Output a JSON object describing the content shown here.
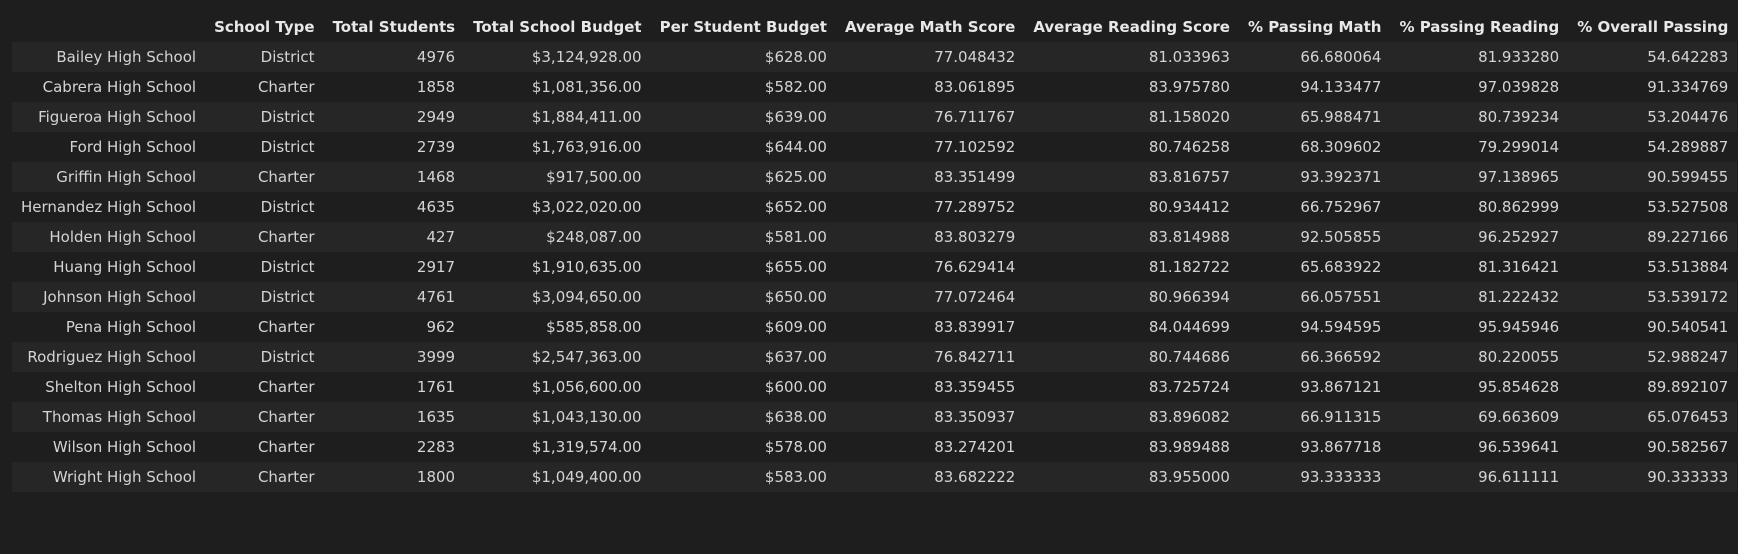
{
  "table": {
    "columns": [
      "",
      "School Type",
      "Total Students",
      "Total School Budget",
      "Per Student Budget",
      "Average Math Score",
      "Average Reading Score",
      "% Passing Math",
      "% Passing Reading",
      "% Overall Passing"
    ],
    "rows": [
      [
        "Bailey High School",
        "District",
        "4976",
        "$3,124,928.00",
        "$628.00",
        "77.048432",
        "81.033963",
        "66.680064",
        "81.933280",
        "54.642283"
      ],
      [
        "Cabrera High School",
        "Charter",
        "1858",
        "$1,081,356.00",
        "$582.00",
        "83.061895",
        "83.975780",
        "94.133477",
        "97.039828",
        "91.334769"
      ],
      [
        "Figueroa High School",
        "District",
        "2949",
        "$1,884,411.00",
        "$639.00",
        "76.711767",
        "81.158020",
        "65.988471",
        "80.739234",
        "53.204476"
      ],
      [
        "Ford High School",
        "District",
        "2739",
        "$1,763,916.00",
        "$644.00",
        "77.102592",
        "80.746258",
        "68.309602",
        "79.299014",
        "54.289887"
      ],
      [
        "Griffin High School",
        "Charter",
        "1468",
        "$917,500.00",
        "$625.00",
        "83.351499",
        "83.816757",
        "93.392371",
        "97.138965",
        "90.599455"
      ],
      [
        "Hernandez High School",
        "District",
        "4635",
        "$3,022,020.00",
        "$652.00",
        "77.289752",
        "80.934412",
        "66.752967",
        "80.862999",
        "53.527508"
      ],
      [
        "Holden High School",
        "Charter",
        "427",
        "$248,087.00",
        "$581.00",
        "83.803279",
        "83.814988",
        "92.505855",
        "96.252927",
        "89.227166"
      ],
      [
        "Huang High School",
        "District",
        "2917",
        "$1,910,635.00",
        "$655.00",
        "76.629414",
        "81.182722",
        "65.683922",
        "81.316421",
        "53.513884"
      ],
      [
        "Johnson High School",
        "District",
        "4761",
        "$3,094,650.00",
        "$650.00",
        "77.072464",
        "80.966394",
        "66.057551",
        "81.222432",
        "53.539172"
      ],
      [
        "Pena High School",
        "Charter",
        "962",
        "$585,858.00",
        "$609.00",
        "83.839917",
        "84.044699",
        "94.594595",
        "95.945946",
        "90.540541"
      ],
      [
        "Rodriguez High School",
        "District",
        "3999",
        "$2,547,363.00",
        "$637.00",
        "76.842711",
        "80.744686",
        "66.366592",
        "80.220055",
        "52.988247"
      ],
      [
        "Shelton High School",
        "Charter",
        "1761",
        "$1,056,600.00",
        "$600.00",
        "83.359455",
        "83.725724",
        "93.867121",
        "95.854628",
        "89.892107"
      ],
      [
        "Thomas High School",
        "Charter",
        "1635",
        "$1,043,130.00",
        "$638.00",
        "83.350937",
        "83.896082",
        "66.911315",
        "69.663609",
        "65.076453"
      ],
      [
        "Wilson High School",
        "Charter",
        "2283",
        "$1,319,574.00",
        "$578.00",
        "83.274201",
        "83.989488",
        "93.867718",
        "96.539641",
        "90.582567"
      ],
      [
        "Wright High School",
        "Charter",
        "1800",
        "$1,049,400.00",
        "$583.00",
        "83.682222",
        "83.955000",
        "93.333333",
        "96.611111",
        "90.333333"
      ]
    ]
  }
}
